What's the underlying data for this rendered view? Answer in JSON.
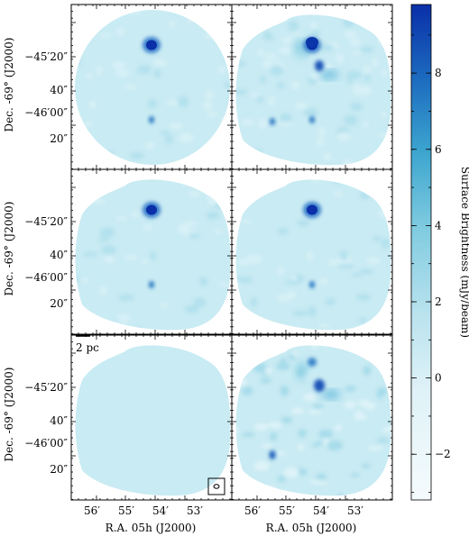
{
  "chart_data": {
    "type": "heatmap",
    "title": "",
    "xlabel": "R.A. 05h (J2000)",
    "ylabel": "Dec. -69° (J2000)",
    "x_ticklabels": [
      "56′",
      "55′",
      "54′",
      "53′"
    ],
    "y_ticklabels": [
      "−45′20″",
      "40″",
      "−46′00″",
      "20″"
    ],
    "colorbar": {
      "label": "Surface Brightness (mJy/beam)",
      "ticks": [
        -2,
        0,
        2,
        4,
        6,
        8
      ],
      "range": [
        -3.2,
        9.8
      ],
      "colors": [
        "#f5fbfd",
        "#c3e8f1",
        "#7fcbe0",
        "#3da6cf",
        "#1c6bbf",
        "#0a2fa8"
      ]
    },
    "scale_bar_label": "2 pc",
    "panels": [
      {
        "row": 0,
        "col": 0,
        "shape": "round",
        "bright_sources": [
          "north-compact",
          "south-compact"
        ]
      },
      {
        "row": 0,
        "col": 1,
        "shape": "rounded-diamond",
        "bright_sources": [
          "north-compact",
          "north-extended",
          "south-pair"
        ]
      },
      {
        "row": 1,
        "col": 0,
        "shape": "rounded-diamond",
        "bright_sources": [
          "north-compact",
          "south-compact"
        ]
      },
      {
        "row": 1,
        "col": 1,
        "shape": "rounded-diamond",
        "bright_sources": [
          "north-compact",
          "south-compact"
        ]
      },
      {
        "row": 2,
        "col": 0,
        "shape": "rounded-diamond",
        "bright_sources": []
      },
      {
        "row": 2,
        "col": 1,
        "shape": "rounded-diamond",
        "bright_sources": [
          "north-extended",
          "southwest-compact"
        ]
      }
    ]
  }
}
